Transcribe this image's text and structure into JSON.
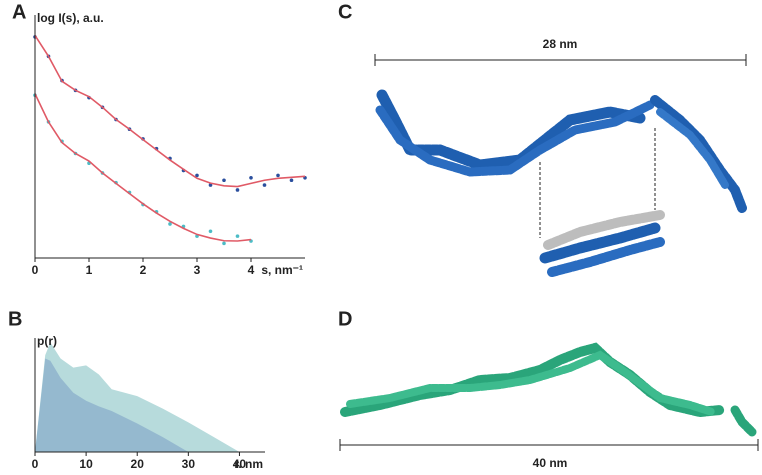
{
  "panel_labels": [
    "A",
    "B",
    "C",
    "D"
  ],
  "chart_data": [
    {
      "type": "line",
      "y_label": "log I(s), a.u.",
      "x_label": "s, nm⁻¹",
      "xlim": [
        0,
        5
      ],
      "xticks": [
        0,
        1,
        2,
        3,
        4
      ],
      "ylim": [
        0,
        10
      ],
      "x": [
        0,
        0.25,
        0.5,
        0.75,
        1,
        1.25,
        1.5,
        1.75,
        2,
        2.25,
        2.5,
        2.75,
        3,
        3.25,
        3.5,
        3.75,
        4,
        4.25,
        4.5,
        4.75,
        5
      ],
      "series": [
        {
          "mode": "markers",
          "color": "#2b4f9e",
          "values": [
            9.1,
            8.3,
            7.3,
            6.9,
            6.6,
            6.2,
            5.7,
            5.3,
            4.9,
            4.5,
            4.1,
            3.6,
            3.4,
            3.0,
            3.2,
            2.8,
            3.3,
            3.0,
            3.4,
            3.2,
            3.3
          ]
        },
        {
          "mode": "line",
          "color": "#e05a66",
          "values": [
            9.16,
            8.3,
            7.27,
            6.9,
            6.64,
            6.2,
            5.7,
            5.3,
            4.87,
            4.45,
            4.03,
            3.65,
            3.28,
            3.08,
            2.97,
            2.94,
            3.07,
            3.2,
            3.28,
            3.32,
            3.36
          ]
        },
        {
          "mode": "markers",
          "color": "#4cbcc6",
          "values": [
            6.7,
            5.6,
            4.8,
            4.3,
            3.9,
            3.5,
            3.1,
            2.7,
            2.2,
            1.9,
            1.4,
            1.3,
            0.9,
            1.1,
            0.6,
            0.9,
            0.7,
            null,
            null,
            null,
            null
          ]
        },
        {
          "mode": "line",
          "color": "#e05a66",
          "values": [
            6.76,
            5.6,
            4.75,
            4.3,
            3.99,
            3.5,
            3.07,
            2.65,
            2.23,
            1.85,
            1.51,
            1.22,
            0.97,
            0.82,
            0.71,
            0.7,
            0.76,
            null,
            null,
            null,
            null
          ]
        }
      ]
    },
    {
      "type": "area",
      "y_label": "p(r)",
      "x_label": "r. nm",
      "xlim": [
        0,
        45
      ],
      "xticks": [
        0,
        10,
        20,
        30,
        40
      ],
      "ylim": [
        0,
        10
      ],
      "x": [
        0,
        2,
        3,
        5,
        7.5,
        10,
        12.5,
        15,
        20,
        25,
        30,
        35,
        40
      ],
      "series": [
        {
          "color": "#9fcfd0",
          "values": [
            0,
            8.5,
            9.6,
            8.2,
            7.4,
            7.6,
            6.8,
            5.5,
            4.9,
            3.8,
            2.6,
            1.3,
            0
          ]
        },
        {
          "color": "#8aaecb",
          "values": [
            0,
            8.2,
            8.0,
            6.5,
            5.2,
            4.5,
            4.0,
            3.6,
            2.5,
            1.3,
            0,
            null,
            null
          ]
        }
      ]
    }
  ],
  "structures": [
    {
      "scale_label": "28 nm"
    },
    {
      "scale_label": "40 nm"
    }
  ]
}
